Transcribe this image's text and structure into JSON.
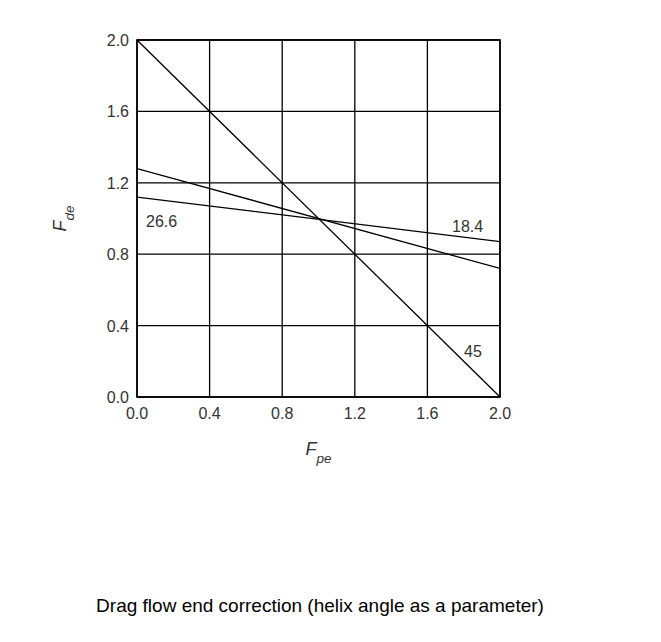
{
  "chart_data": {
    "type": "line",
    "title": "Drag flow end correction (helix angle as a parameter)",
    "x_label": "Fpe",
    "y_label": "Fde",
    "x": [
      0,
      2
    ],
    "series": [
      {
        "name": "45",
        "color": "#000000",
        "values": [
          2.0,
          0.0
        ]
      },
      {
        "name": "26.6",
        "color": "#000000",
        "values": [
          1.28,
          0.72
        ]
      },
      {
        "name": "18.4",
        "color": "#000000",
        "values": [
          1.12,
          0.87
        ]
      }
    ],
    "xlim": [
      0,
      2
    ],
    "ylim": [
      0,
      2
    ],
    "xticks": [
      {
        "value": 0,
        "label": "0.0"
      },
      0.4,
      0.8,
      1.2,
      1.6,
      {
        "value": 2,
        "label": "2.0"
      }
    ],
    "yticks": [
      {
        "value": 0,
        "label": "0.0"
      },
      0.4,
      0.8,
      1.2,
      1.6,
      {
        "value": 2,
        "label": "2.0"
      }
    ],
    "grid": true
  }
}
